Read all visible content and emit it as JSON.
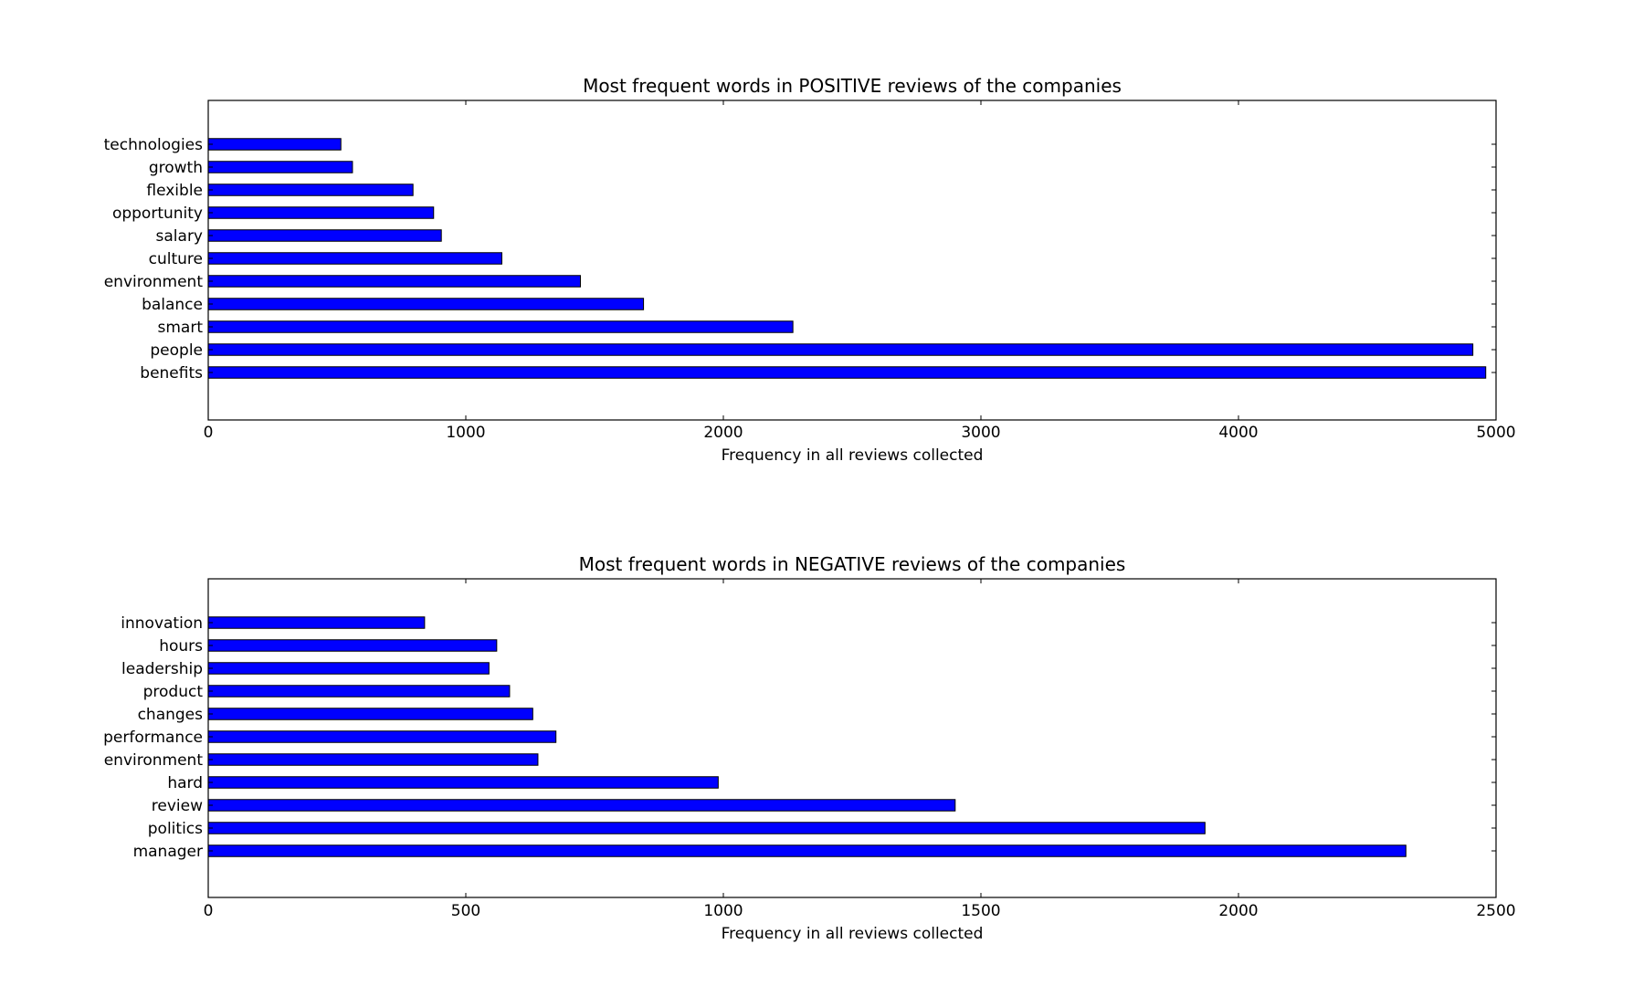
{
  "chart_data": [
    {
      "type": "bar",
      "orientation": "horizontal",
      "title": "Most frequent words in POSITIVE reviews of the companies",
      "xlabel": "Frequency in all reviews collected",
      "ylabel": "",
      "xlim": [
        0,
        5000
      ],
      "xticks": [
        0,
        1000,
        2000,
        3000,
        4000,
        5000
      ],
      "grid": false,
      "bar_color": "#0000ff",
      "categories": [
        "benefits",
        "people",
        "smart",
        "balance",
        "environment",
        "culture",
        "salary",
        "opportunity",
        "flexible",
        "growth",
        "technologies"
      ],
      "values": [
        4960,
        4910,
        2270,
        1690,
        1445,
        1140,
        905,
        875,
        795,
        560,
        515
      ]
    },
    {
      "type": "bar",
      "orientation": "horizontal",
      "title": "Most frequent words in NEGATIVE reviews of the companies",
      "xlabel": "Frequency in all reviews collected",
      "ylabel": "",
      "xlim": [
        0,
        2500
      ],
      "xticks": [
        0,
        500,
        1000,
        1500,
        2000,
        2500
      ],
      "grid": false,
      "bar_color": "#0000ff",
      "categories": [
        "manager",
        "politics",
        "review",
        "hard",
        "environment",
        "performance",
        "changes",
        "product",
        "leadership",
        "hours",
        "innovation"
      ],
      "values": [
        2325,
        1935,
        1450,
        990,
        640,
        675,
        630,
        585,
        545,
        560,
        420
      ]
    }
  ]
}
